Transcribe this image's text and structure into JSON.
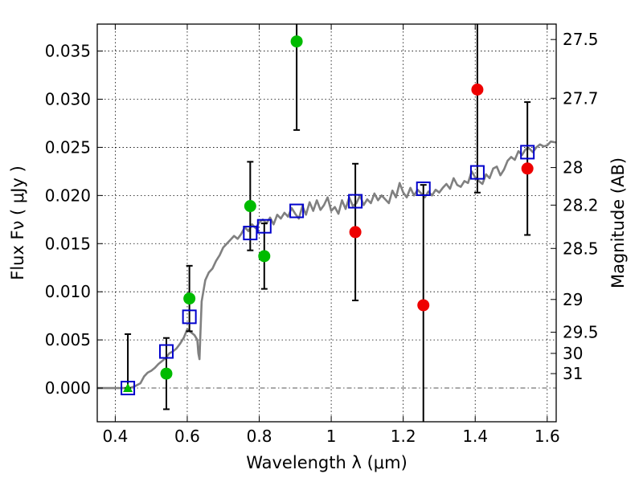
{
  "chart_data": {
    "type": "scatter",
    "xlabel": "Wavelength  λ (μm)",
    "ylabel": "Flux  Fν  ( μJy )",
    "ylabel_right": "Magnitude (AB)",
    "xlim": [
      0.35,
      1.625
    ],
    "ylim": [
      -0.0035,
      0.0378
    ],
    "x_ticks": [
      0.4,
      0.6,
      0.8,
      1.0,
      1.2,
      1.4,
      1.6
    ],
    "x_tick_labels": [
      "0.4",
      "0.6",
      "0.8",
      "1",
      "1.2",
      "1.4",
      "1.6"
    ],
    "y_ticks": [
      0.0,
      0.005,
      0.01,
      0.015,
      0.02,
      0.025,
      0.03,
      0.035
    ],
    "y_tick_labels": [
      "0.000",
      "0.005",
      "0.010",
      "0.015",
      "0.020",
      "0.025",
      "0.030",
      "0.035"
    ],
    "magnitude_ticks": [
      {
        "label": "27.5",
        "flux": 0.0362
      },
      {
        "label": "27.7",
        "flux": 0.0301
      },
      {
        "label": "28",
        "flux": 0.0229
      },
      {
        "label": "28.2",
        "flux": 0.019
      },
      {
        "label": "28.5",
        "flux": 0.0145
      },
      {
        "label": "29",
        "flux": 0.0092
      },
      {
        "label": "29.5",
        "flux": 0.0058
      },
      {
        "label": "30",
        "flux": 0.0036
      },
      {
        "label": "31",
        "flux": 0.0015
      }
    ],
    "grid": true,
    "colors": {
      "green": "#00bb00",
      "red": "#ee0000",
      "model": "#808080",
      "box": "#0000cc",
      "errorbar": "#000000",
      "zero": "#555555"
    },
    "series": [
      {
        "name": "Observed (green)",
        "marker": "circle",
        "points": [
          {
            "x": 0.542,
            "y": 0.0015,
            "yerr_low": 0.0037,
            "yerr_high": 0.0037
          },
          {
            "x": 0.606,
            "y": 0.0093,
            "yerr_low": 0.0034,
            "yerr_high": 0.0034
          },
          {
            "x": 0.775,
            "y": 0.0189,
            "yerr_low": 0.0046,
            "yerr_high": 0.0046
          },
          {
            "x": 0.814,
            "y": 0.0137,
            "yerr_low": 0.0034,
            "yerr_high": 0.0034
          },
          {
            "x": 0.904,
            "y": 0.036,
            "yerr_low": 0.0092,
            "yerr_high": 0.003
          }
        ]
      },
      {
        "name": "Detection limit (green triangle)",
        "marker": "triangle",
        "points": [
          {
            "x": 0.435,
            "y": 0.0,
            "yerr_low": 0.0,
            "yerr_high": 0.0056
          }
        ]
      },
      {
        "name": "Observed (red)",
        "marker": "circle",
        "points": [
          {
            "x": 1.067,
            "y": 0.0162,
            "yerr_low": 0.0071,
            "yerr_high": 0.0071
          },
          {
            "x": 1.256,
            "y": 0.0086,
            "yerr_low": 0.0125,
            "yerr_high": 0.0125
          },
          {
            "x": 1.406,
            "y": 0.031,
            "yerr_low": 0.0107,
            "yerr_high": 0.007
          },
          {
            "x": 1.545,
            "y": 0.0228,
            "yerr_low": 0.0069,
            "yerr_high": 0.0069
          }
        ]
      },
      {
        "name": "Model photometry",
        "marker": "square",
        "points": [
          {
            "x": 0.435,
            "y": 0.0
          },
          {
            "x": 0.542,
            "y": 0.0038
          },
          {
            "x": 0.606,
            "y": 0.0074
          },
          {
            "x": 0.775,
            "y": 0.0161
          },
          {
            "x": 0.814,
            "y": 0.0168
          },
          {
            "x": 0.904,
            "y": 0.0184
          },
          {
            "x": 1.067,
            "y": 0.0194
          },
          {
            "x": 1.256,
            "y": 0.0207
          },
          {
            "x": 1.406,
            "y": 0.0224
          },
          {
            "x": 1.545,
            "y": 0.0245
          }
        ]
      }
    ],
    "model_spectrum": {
      "name": "Model SED",
      "x": [
        0.35,
        0.44,
        0.455,
        0.47,
        0.48,
        0.49,
        0.5,
        0.51,
        0.52,
        0.53,
        0.54,
        0.55,
        0.56,
        0.57,
        0.58,
        0.59,
        0.6,
        0.61,
        0.62,
        0.628,
        0.631,
        0.634,
        0.637,
        0.64,
        0.65,
        0.66,
        0.67,
        0.68,
        0.69,
        0.7,
        0.71,
        0.72,
        0.73,
        0.74,
        0.75,
        0.76,
        0.77,
        0.78,
        0.79,
        0.8,
        0.81,
        0.82,
        0.83,
        0.84,
        0.85,
        0.86,
        0.87,
        0.88,
        0.89,
        0.9,
        0.91,
        0.92,
        0.93,
        0.94,
        0.95,
        0.96,
        0.97,
        0.98,
        0.99,
        1.0,
        1.01,
        1.02,
        1.03,
        1.04,
        1.05,
        1.06,
        1.07,
        1.08,
        1.09,
        1.1,
        1.11,
        1.12,
        1.13,
        1.14,
        1.15,
        1.16,
        1.17,
        1.18,
        1.19,
        1.2,
        1.21,
        1.22,
        1.23,
        1.24,
        1.25,
        1.26,
        1.27,
        1.28,
        1.29,
        1.3,
        1.31,
        1.32,
        1.33,
        1.34,
        1.35,
        1.36,
        1.37,
        1.38,
        1.39,
        1.4,
        1.41,
        1.42,
        1.43,
        1.44,
        1.45,
        1.46,
        1.47,
        1.48,
        1.49,
        1.5,
        1.51,
        1.52,
        1.53,
        1.54,
        1.55,
        1.56,
        1.57,
        1.58,
        1.59,
        1.6,
        1.61,
        1.625
      ],
      "y": [
        0.0,
        0.0,
        0.0002,
        0.0005,
        0.0012,
        0.0016,
        0.0018,
        0.0021,
        0.0025,
        0.0028,
        0.0031,
        0.0036,
        0.0038,
        0.0041,
        0.0046,
        0.0052,
        0.0061,
        0.0058,
        0.0055,
        0.005,
        0.0036,
        0.003,
        0.006,
        0.009,
        0.0112,
        0.012,
        0.0124,
        0.0132,
        0.0138,
        0.0146,
        0.015,
        0.0154,
        0.0158,
        0.0155,
        0.016,
        0.0167,
        0.0163,
        0.017,
        0.0166,
        0.0172,
        0.0175,
        0.0171,
        0.0177,
        0.017,
        0.018,
        0.0176,
        0.0182,
        0.0178,
        0.0187,
        0.0181,
        0.0176,
        0.0189,
        0.018,
        0.0193,
        0.0184,
        0.0195,
        0.0185,
        0.019,
        0.0198,
        0.0184,
        0.0188,
        0.0181,
        0.0195,
        0.0186,
        0.0198,
        0.0189,
        0.0192,
        0.02,
        0.019,
        0.0196,
        0.0192,
        0.0202,
        0.0195,
        0.02,
        0.0196,
        0.0192,
        0.0205,
        0.0198,
        0.0213,
        0.0203,
        0.0198,
        0.0208,
        0.02,
        0.0206,
        0.0202,
        0.0198,
        0.0204,
        0.02,
        0.0206,
        0.0203,
        0.0208,
        0.0212,
        0.0207,
        0.0218,
        0.0211,
        0.0209,
        0.0215,
        0.0213,
        0.0225,
        0.0219,
        0.0215,
        0.0212,
        0.0222,
        0.0218,
        0.0228,
        0.023,
        0.0221,
        0.0227,
        0.0236,
        0.024,
        0.0237,
        0.0246,
        0.0242,
        0.0248,
        0.0249,
        0.0245,
        0.025,
        0.0253,
        0.0251,
        0.0252,
        0.0256,
        0.0255
      ]
    }
  }
}
